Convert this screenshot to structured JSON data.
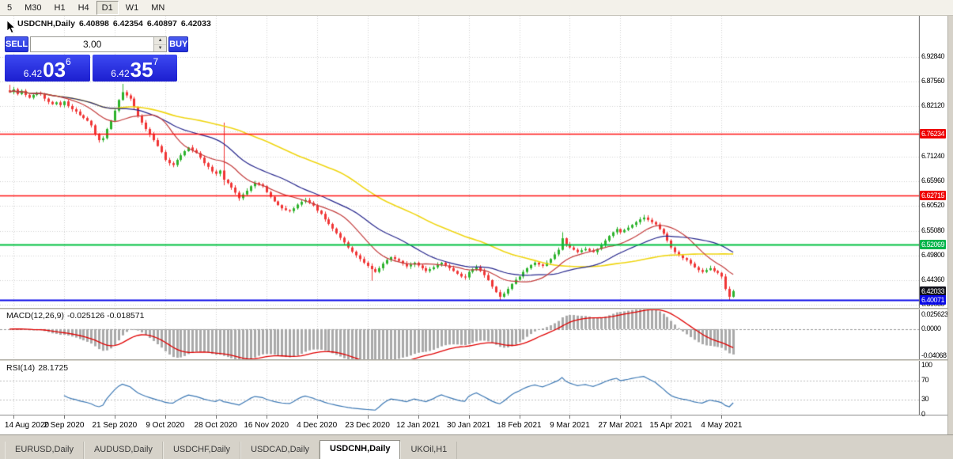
{
  "toolbar": {
    "timeframes": [
      {
        "label": "5",
        "active": false
      },
      {
        "label": "M30",
        "active": false
      },
      {
        "label": "H1",
        "active": false
      },
      {
        "label": "H4",
        "active": false
      },
      {
        "label": "D1",
        "active": true
      },
      {
        "label": "W1",
        "active": false
      },
      {
        "label": "MN",
        "active": false
      }
    ]
  },
  "chart_header": {
    "symbol": "USDCNH,Daily",
    "open": "6.40898",
    "high": "6.42354",
    "low": "6.40897",
    "close": "6.42033"
  },
  "trade_panel": {
    "sell_label": "SELL",
    "buy_label": "BUY",
    "volume": "3.00",
    "sell_price": {
      "prefix": "6.42",
      "big": "03",
      "sup": "6"
    },
    "buy_price": {
      "prefix": "6.42",
      "big": "35",
      "sup": "7"
    },
    "accent": "#2331dc"
  },
  "icons": {
    "volume_up": "▲",
    "volume_down": "▼"
  },
  "price_axis": {
    "labels": [
      {
        "text": "6.92840",
        "price": 6.9284
      },
      {
        "text": "6.87560",
        "price": 6.8756
      },
      {
        "text": "6.82120",
        "price": 6.8212
      },
      {
        "text": "6.71240",
        "price": 6.7124
      },
      {
        "text": "6.65960",
        "price": 6.6596
      },
      {
        "text": "6.60520",
        "price": 6.6052
      },
      {
        "text": "6.55080",
        "price": 6.5508
      },
      {
        "text": "6.49800",
        "price": 6.498
      },
      {
        "text": "6.44360",
        "price": 6.4436
      },
      {
        "text": "6.39080",
        "price": 6.3908
      }
    ],
    "extra_grid": [
      6.7668
    ],
    "line_labels": [
      {
        "text": "6.76234",
        "price": 6.76234,
        "bg": "#ee0000"
      },
      {
        "text": "6.62715",
        "price": 6.62715,
        "bg": "#ee0000"
      },
      {
        "text": "6.52069",
        "price": 6.52069,
        "bg": "#00b44a"
      },
      {
        "text": "6.42033",
        "price": 6.42033,
        "bg": "#10101a"
      },
      {
        "text": "6.40071",
        "price": 6.40071,
        "bg": "#0a0ae6"
      }
    ]
  },
  "indicators": {
    "macd": {
      "name": "MACD(12,26,9)",
      "values": "-0.025126 -0.018571",
      "axis": [
        {
          "text": "0.025623",
          "value": 0.025623
        },
        {
          "text": "0.0000",
          "value": 0
        },
        {
          "text": "-0.04068",
          "value": -0.04068
        }
      ]
    },
    "rsi": {
      "name": "RSI(14)",
      "value": "28.1725",
      "axis": [
        {
          "text": "100",
          "value": 100
        },
        {
          "text": "70",
          "value": 70
        },
        {
          "text": "30",
          "value": 30
        },
        {
          "text": "0",
          "value": 0
        }
      ],
      "levels": [
        70,
        30
      ]
    }
  },
  "tabs": [
    {
      "label": "EURUSD,Daily",
      "active": false
    },
    {
      "label": "AUDUSD,Daily",
      "active": false
    },
    {
      "label": "USDCHF,Daily",
      "active": false
    },
    {
      "label": "USDCAD,Daily",
      "active": false
    },
    {
      "label": "USDCNH,Daily",
      "active": true
    },
    {
      "label": "UKOil,H1",
      "active": false
    }
  ],
  "chart_data": {
    "type": "candlestick",
    "symbol": "USDCNH",
    "timeframe": "Daily",
    "dates": [
      "14 Aug 2020",
      "2 Sep 2020",
      "21 Sep 2020",
      "9 Oct 2020",
      "28 Oct 2020",
      "16 Nov 2020",
      "4 Dec 2020",
      "23 Dec 2020",
      "12 Jan 2021",
      "30 Jan 2021",
      "18 Feb 2021",
      "9 Mar 2021",
      "27 Mar 2021",
      "15 Apr 2021",
      "4 May 2021"
    ],
    "first_label_index": 1,
    "candles_per_label": 13,
    "closes": [
      6.852,
      6.858,
      6.848,
      6.855,
      6.846,
      6.84,
      6.846,
      6.851,
      6.848,
      6.838,
      6.831,
      6.826,
      6.83,
      6.824,
      6.832,
      6.822,
      6.815,
      6.81,
      6.802,
      6.796,
      6.79,
      6.78,
      6.76,
      6.748,
      6.752,
      6.772,
      6.79,
      6.812,
      6.835,
      6.852,
      6.845,
      6.838,
      6.82,
      6.8,
      6.786,
      6.772,
      6.76,
      6.748,
      6.735,
      6.722,
      6.705,
      6.698,
      6.694,
      6.705,
      6.715,
      6.724,
      6.732,
      6.726,
      6.72,
      6.71,
      6.698,
      6.69,
      6.68,
      6.675,
      6.682,
      6.662,
      6.655,
      6.645,
      6.634,
      6.622,
      6.63,
      6.638,
      6.648,
      6.655,
      6.652,
      6.648,
      6.635,
      6.625,
      6.615,
      6.607,
      6.6,
      6.596,
      6.594,
      6.6,
      6.608,
      6.614,
      6.618,
      6.612,
      6.606,
      6.595,
      6.588,
      6.576,
      6.566,
      6.556,
      6.546,
      6.536,
      6.526,
      6.515,
      6.506,
      6.498,
      6.49,
      6.482,
      6.475,
      6.468,
      6.462,
      6.47,
      6.48,
      6.488,
      6.494,
      6.49,
      6.486,
      6.48,
      6.474,
      6.478,
      6.482,
      6.476,
      6.47,
      6.464,
      6.468,
      6.472,
      6.478,
      6.482,
      6.476,
      6.47,
      6.464,
      6.458,
      6.452,
      6.45,
      6.462,
      6.468,
      6.472,
      6.464,
      6.455,
      6.444,
      6.43,
      6.418,
      6.408,
      6.415,
      6.425,
      6.436,
      6.445,
      6.452,
      6.462,
      6.47,
      6.477,
      6.482,
      6.478,
      6.475,
      6.482,
      6.49,
      6.5,
      6.51,
      6.535,
      6.522,
      6.515,
      6.51,
      6.505,
      6.509,
      6.512,
      6.508,
      6.505,
      6.512,
      6.52,
      6.53,
      6.54,
      6.548,
      6.555,
      6.548,
      6.553,
      6.558,
      6.564,
      6.57,
      6.576,
      6.58,
      6.575,
      6.57,
      6.565,
      6.555,
      6.545,
      6.53,
      6.515,
      6.505,
      6.498,
      6.492,
      6.488,
      6.48,
      6.472,
      6.466,
      6.462,
      6.466,
      6.47,
      6.464,
      6.46,
      6.452,
      6.425,
      6.408,
      6.4203
    ],
    "open_offset_first": 0.004,
    "overrides": {
      "0": {
        "h": 6.868
      },
      "29": {
        "h": 6.87
      },
      "55": {
        "h": 6.786,
        "l": 6.65
      },
      "93": {
        "l": 6.443
      },
      "126": {
        "l": 6.4
      },
      "142": {
        "h": 6.548
      },
      "163": {
        "h": 6.586
      },
      "185": {
        "l": 6.4
      }
    },
    "up_color": "#2db32d",
    "down_color": "#f03535",
    "moving_averages": [
      {
        "period": 60,
        "color": "#efd511",
        "width": 1.6
      },
      {
        "period": 28,
        "color": "#26268c",
        "width": 1.2
      },
      {
        "period": 13,
        "color": "#c23b3b",
        "width": 1.2
      }
    ],
    "h_lines": [
      {
        "price": 6.76234,
        "color": "#ff1010",
        "width": 1.4
      },
      {
        "price": 6.62715,
        "color": "#ff1010",
        "width": 1.4
      },
      {
        "price": 6.52069,
        "color": "#00c040",
        "width": 2
      },
      {
        "price": 6.40071,
        "color": "#0808e8",
        "width": 2
      }
    ],
    "macd": {
      "fast": 12,
      "slow": 26,
      "signal": 9,
      "scale": 1.45,
      "hist_color": "#a9a9a9",
      "signal_color": "#e00000",
      "range": {
        "max": 0.03,
        "min": -0.046
      }
    },
    "rsi": {
      "period": 14,
      "color": "#3c78b4"
    }
  }
}
